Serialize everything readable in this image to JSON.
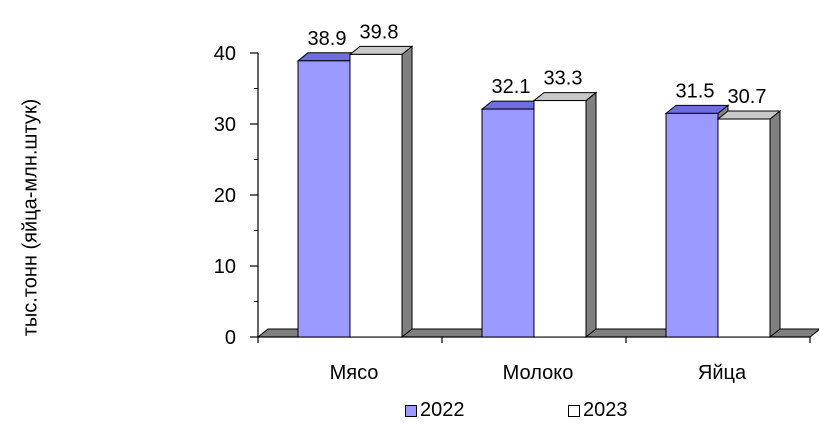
{
  "chart_data": {
    "type": "bar",
    "title": "",
    "xlabel": "",
    "ylabel": "тыс.тонн (яйца-млн.штук)",
    "categories": [
      "Мясо",
      "Молоко",
      "Яйца"
    ],
    "series": [
      {
        "name": "2022",
        "values": [
          38.9,
          32.1,
          31.5
        ],
        "color": "#9999ff"
      },
      {
        "name": "2023",
        "values": [
          39.8,
          33.3,
          30.7
        ],
        "color": "#ffffff"
      }
    ],
    "ylim": [
      0,
      40
    ],
    "yticks": [
      "0",
      "10",
      "20",
      "30",
      "40"
    ],
    "data_labels": [
      [
        "38.9",
        "32.1",
        "31.5"
      ],
      [
        "39.8",
        "33.3",
        "30.7"
      ]
    ],
    "style": "3d-column",
    "grid": false,
    "legend_position": "bottom",
    "colors": {
      "floor": "#808080",
      "bar_side": "#808080",
      "axis": "#000000"
    }
  }
}
